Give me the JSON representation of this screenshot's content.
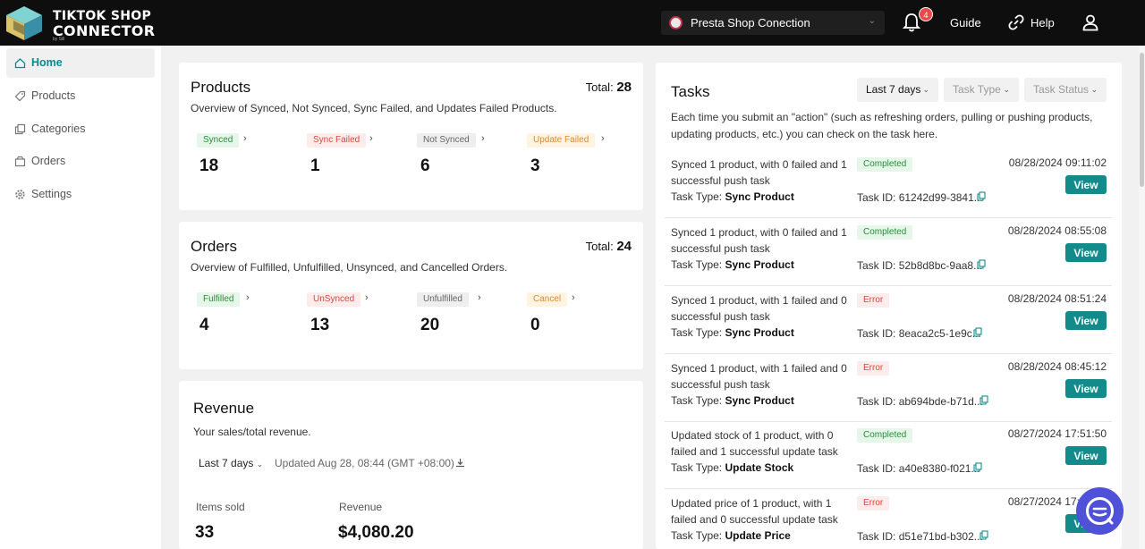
{
  "brand": {
    "line1": "TIKTOK SHOP",
    "line2": "CONNECTOR",
    "sub": "by Sill"
  },
  "header": {
    "shop": "Presta Shop Conection",
    "notifications": "4",
    "guide": "Guide",
    "help": "Help"
  },
  "sidebar": {
    "items": [
      {
        "label": "Home",
        "icon": "home-icon"
      },
      {
        "label": "Products",
        "icon": "tag-icon"
      },
      {
        "label": "Categories",
        "icon": "copy-icon"
      },
      {
        "label": "Orders",
        "icon": "box-icon"
      },
      {
        "label": "Settings",
        "icon": "gear-icon"
      }
    ]
  },
  "products": {
    "title": "Products",
    "total_label": "Total:",
    "total": "28",
    "subtitle": "Overview of Synced, Not Synced, Sync Failed, and Updates Failed Products.",
    "stats": [
      {
        "label": "Synced",
        "value": "18"
      },
      {
        "label": "Sync Failed",
        "value": "1"
      },
      {
        "label": "Not Synced",
        "value": "6"
      },
      {
        "label": "Update Failed",
        "value": "3"
      }
    ]
  },
  "orders": {
    "title": "Orders",
    "total_label": "Total:",
    "total": "24",
    "subtitle": "Overview of Fulfilled, Unfulfilled, Unsynced, and Cancelled Orders.",
    "stats": [
      {
        "label": "Fulfilled",
        "value": "4"
      },
      {
        "label": "UnSynced",
        "value": "13"
      },
      {
        "label": "Unfulfilled",
        "value": "20"
      },
      {
        "label": "Cancel",
        "value": "0"
      }
    ]
  },
  "revenue": {
    "title": "Revenue",
    "subtitle": "Your sales/total revenue.",
    "range": "Last 7 days",
    "updated": "Updated Aug 28, 08:44 (GMT +08:00)",
    "items_sold_label": "Items sold",
    "items_sold": "33",
    "revenue_label": "Revenue",
    "revenue": "$4,080.20"
  },
  "tasks": {
    "title": "Tasks",
    "filters": [
      "Last 7 days",
      "Task Type",
      "Task Status"
    ],
    "intro": "Each time you submit an \"action\" (such as refreshing orders, pulling or pushing products, updating products, etc.) you can check on the task here.",
    "type_label": "Task Type:",
    "id_label": "Task ID:",
    "view_label": "View",
    "status_colors": {
      "Completed": "#2c8a3c",
      "Error": "#d9483b"
    },
    "items": [
      {
        "desc": "Synced 1 product, with 0 failed and 1 successful push task",
        "status": "Completed",
        "type": "Sync Product",
        "id": "61242d99-3841...",
        "date": "08/28/2024 09:11:02"
      },
      {
        "desc": "Synced 1 product, with 0 failed and 1 successful push task",
        "status": "Completed",
        "type": "Sync Product",
        "id": "52b8d8bc-9aa8...",
        "date": "08/28/2024 08:55:08"
      },
      {
        "desc": "Synced 1 product, with 1 failed and 0 successful push task",
        "status": "Error",
        "type": "Sync Product",
        "id": "8eaca2c5-1e9c...",
        "date": "08/28/2024 08:51:24"
      },
      {
        "desc": "Synced 1 product, with 1 failed and 0 successful push task",
        "status": "Error",
        "type": "Sync Product",
        "id": "ab694bde-b71d...",
        "date": "08/28/2024 08:45:12"
      },
      {
        "desc": "Updated stock of 1 product, with 0 failed and 1 successful update task",
        "status": "Completed",
        "type": "Update Stock",
        "id": "a40e8380-f021...",
        "date": "08/27/2024 17:51:50"
      },
      {
        "desc": "Updated price of 1 product, with 1 failed and 0 successful update task",
        "status": "Error",
        "type": "Update Price",
        "id": "d51e71bd-b302...",
        "date": "08/27/2024 17:51:50"
      }
    ]
  }
}
